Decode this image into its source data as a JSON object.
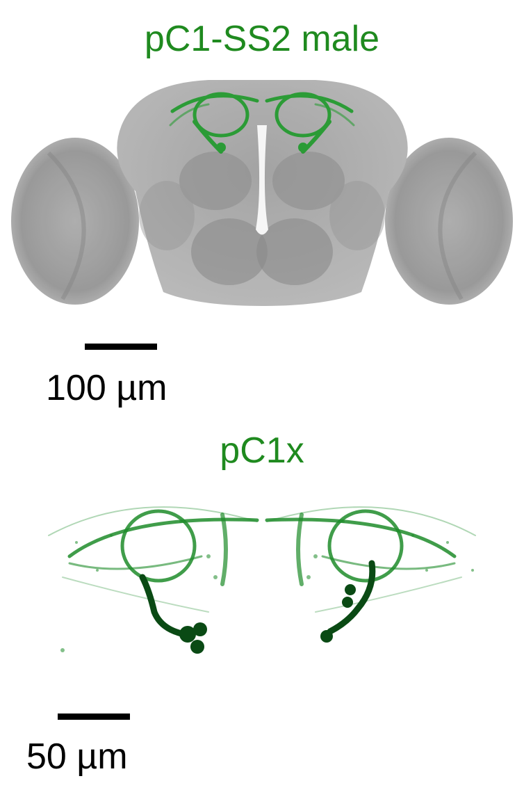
{
  "panels": [
    {
      "title": "pC1-SS2 male",
      "scale_label": "100 µm",
      "scale_relative_value": 100
    },
    {
      "title": "pC1x",
      "scale_label": "50 µm",
      "scale_relative_value": 50
    }
  ],
  "colors": {
    "title_green": "#1f8a1f",
    "neuron_green": "#1e8c2a",
    "neuron_dark": "#0a4a14",
    "brain_gray": "#8a8a8a",
    "scale_black": "#000000"
  }
}
